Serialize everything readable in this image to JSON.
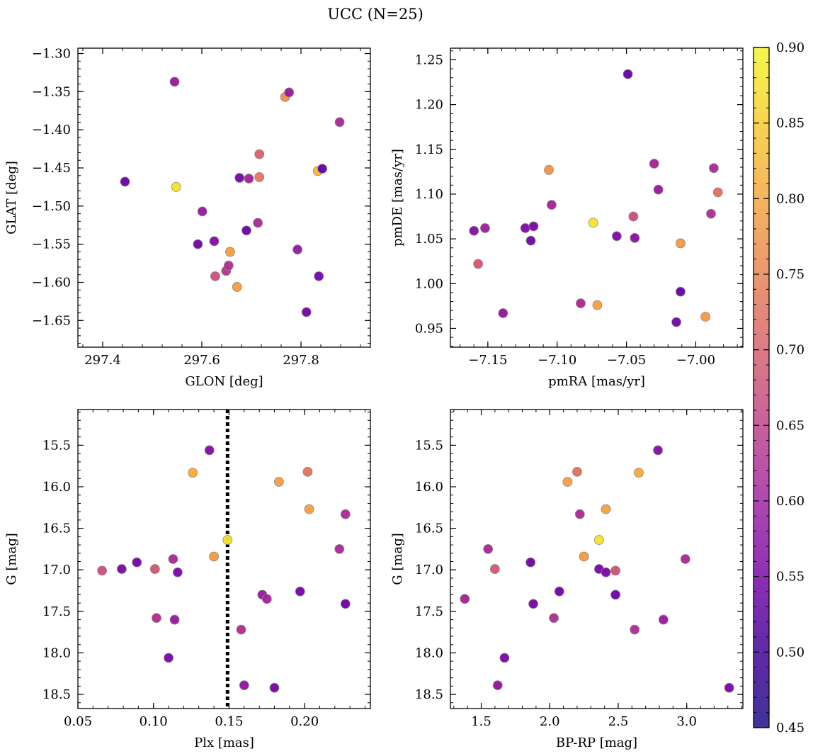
{
  "figure": {
    "title": "UCC (N=25)"
  },
  "colors": {
    "colormap": "plasma",
    "marker_edge": "#8a8a8a",
    "frame": "#000000",
    "reference_line": "#000000"
  },
  "colorbar": {
    "range": [
      0.45,
      0.9
    ],
    "ticks": [
      0.45,
      0.5,
      0.55,
      0.6,
      0.65,
      0.7,
      0.75,
      0.8,
      0.85,
      0.9
    ],
    "tick_labels": [
      "0.45",
      "0.50",
      "0.55",
      "0.60",
      "0.65",
      "0.70",
      "0.75",
      "0.80",
      "0.85",
      "0.90"
    ]
  },
  "chart_data": [
    {
      "type": "scatter",
      "id": "glon-glat",
      "xlabel": "GLON [deg]",
      "ylabel": "GLAT [deg]",
      "xlim": [
        297.35,
        297.94
      ],
      "ylim": [
        -1.685,
        -1.293
      ],
      "y_inverted": false,
      "xticks": [
        297.4,
        297.6,
        297.8
      ],
      "xtick_labels": [
        "297.4",
        "297.6",
        "297.8"
      ],
      "yticks": [
        -1.3,
        -1.35,
        -1.4,
        -1.45,
        -1.5,
        -1.55,
        -1.6,
        -1.65
      ],
      "ytick_labels": [
        "−1.30",
        "−1.35",
        "−1.40",
        "−1.45",
        "−1.50",
        "−1.55",
        "−1.60",
        "−1.65"
      ],
      "points": [
        {
          "x": 297.545,
          "y": -1.337,
          "c": 0.55
        },
        {
          "x": 297.445,
          "y": -1.468,
          "c": 0.47
        },
        {
          "x": 297.548,
          "y": -1.475,
          "c": 0.9
        },
        {
          "x": 297.601,
          "y": -1.507,
          "c": 0.55
        },
        {
          "x": 297.592,
          "y": -1.55,
          "c": 0.49
        },
        {
          "x": 297.625,
          "y": -1.546,
          "c": 0.52
        },
        {
          "x": 297.627,
          "y": -1.592,
          "c": 0.66
        },
        {
          "x": 297.649,
          "y": -1.585,
          "c": 0.6
        },
        {
          "x": 297.654,
          "y": -1.578,
          "c": 0.59
        },
        {
          "x": 297.657,
          "y": -1.56,
          "c": 0.8
        },
        {
          "x": 297.671,
          "y": -1.606,
          "c": 0.8
        },
        {
          "x": 297.676,
          "y": -1.463,
          "c": 0.5
        },
        {
          "x": 297.69,
          "y": -1.532,
          "c": 0.48
        },
        {
          "x": 297.695,
          "y": -1.464,
          "c": 0.57
        },
        {
          "x": 297.713,
          "y": -1.522,
          "c": 0.58
        },
        {
          "x": 297.716,
          "y": -1.432,
          "c": 0.69
        },
        {
          "x": 297.716,
          "y": -1.462,
          "c": 0.73
        },
        {
          "x": 297.768,
          "y": -1.357,
          "c": 0.77
        },
        {
          "x": 297.776,
          "y": -1.351,
          "c": 0.55
        },
        {
          "x": 297.793,
          "y": -1.557,
          "c": 0.55
        },
        {
          "x": 297.811,
          "y": -1.639,
          "c": 0.49
        },
        {
          "x": 297.834,
          "y": -1.454,
          "c": 0.84
        },
        {
          "x": 297.836,
          "y": -1.592,
          "c": 0.49
        },
        {
          "x": 297.843,
          "y": -1.451,
          "c": 0.47
        },
        {
          "x": 297.878,
          "y": -1.39,
          "c": 0.58
        }
      ]
    },
    {
      "type": "scatter",
      "id": "pmra-pmde",
      "xlabel": "pmRA [mas/yr]",
      "ylabel": "pmDE [mas/yr]",
      "xlim": [
        -7.177,
        -6.966
      ],
      "ylim": [
        0.929,
        1.263
      ],
      "y_inverted": false,
      "xticks": [
        -7.15,
        -7.1,
        -7.05,
        -7.0
      ],
      "xtick_labels": [
        "−7.15",
        "−7.10",
        "−7.05",
        "−7.00"
      ],
      "yticks": [
        0.95,
        1.0,
        1.05,
        1.1,
        1.15,
        1.2,
        1.25
      ],
      "ytick_labels": [
        "0.95",
        "1.00",
        "1.05",
        "1.10",
        "1.15",
        "1.20",
        "1.25"
      ],
      "points": [
        {
          "x": -7.049,
          "y": 1.234,
          "c": 0.47
        },
        {
          "x": -7.03,
          "y": 1.134,
          "c": 0.57
        },
        {
          "x": -6.987,
          "y": 1.129,
          "c": 0.58
        },
        {
          "x": -7.106,
          "y": 1.127,
          "c": 0.78
        },
        {
          "x": -7.027,
          "y": 1.105,
          "c": 0.55
        },
        {
          "x": -6.984,
          "y": 1.102,
          "c": 0.72
        },
        {
          "x": -7.104,
          "y": 1.088,
          "c": 0.57
        },
        {
          "x": -6.989,
          "y": 1.078,
          "c": 0.59
        },
        {
          "x": -7.045,
          "y": 1.075,
          "c": 0.65
        },
        {
          "x": -7.074,
          "y": 1.068,
          "c": 0.9
        },
        {
          "x": -7.16,
          "y": 1.059,
          "c": 0.52
        },
        {
          "x": -7.152,
          "y": 1.062,
          "c": 0.56
        },
        {
          "x": -7.123,
          "y": 1.062,
          "c": 0.51
        },
        {
          "x": -7.117,
          "y": 1.064,
          "c": 0.5
        },
        {
          "x": -7.057,
          "y": 1.053,
          "c": 0.51
        },
        {
          "x": -7.044,
          "y": 1.051,
          "c": 0.53
        },
        {
          "x": -7.119,
          "y": 1.048,
          "c": 0.49
        },
        {
          "x": -7.011,
          "y": 1.045,
          "c": 0.79
        },
        {
          "x": -7.157,
          "y": 1.022,
          "c": 0.67
        },
        {
          "x": -7.011,
          "y": 0.991,
          "c": 0.47
        },
        {
          "x": -7.083,
          "y": 0.978,
          "c": 0.58
        },
        {
          "x": -7.071,
          "y": 0.976,
          "c": 0.8
        },
        {
          "x": -7.139,
          "y": 0.967,
          "c": 0.54
        },
        {
          "x": -6.993,
          "y": 0.963,
          "c": 0.79
        },
        {
          "x": -7.014,
          "y": 0.957,
          "c": 0.49
        }
      ]
    },
    {
      "type": "scatter",
      "id": "plx-g",
      "xlabel": "Plx [mas]",
      "ylabel": "G [mag]",
      "xlim": [
        0.05,
        0.2435
      ],
      "ylim": [
        18.67,
        15.07
      ],
      "y_inverted": true,
      "xticks": [
        0.05,
        0.1,
        0.15,
        0.2
      ],
      "xtick_labels": [
        "0.05",
        "0.10",
        "0.15",
        "0.20"
      ],
      "yticks": [
        15.5,
        16.0,
        16.5,
        17.0,
        17.5,
        18.0,
        18.5
      ],
      "ytick_labels": [
        "15.5",
        "16.0",
        "16.5",
        "17.0",
        "17.5",
        "18.0",
        "18.5"
      ],
      "vline": {
        "x": 0.149,
        "style": "dotted"
      },
      "points": [
        {
          "x": 0.137,
          "y": 15.56,
          "c": 0.52
        },
        {
          "x": 0.126,
          "y": 15.83,
          "c": 0.82
        },
        {
          "x": 0.202,
          "y": 15.82,
          "c": 0.72
        },
        {
          "x": 0.183,
          "y": 15.94,
          "c": 0.8
        },
        {
          "x": 0.203,
          "y": 16.27,
          "c": 0.8
        },
        {
          "x": 0.227,
          "y": 16.33,
          "c": 0.58
        },
        {
          "x": 0.149,
          "y": 16.64,
          "c": 0.9
        },
        {
          "x": 0.223,
          "y": 16.75,
          "c": 0.58
        },
        {
          "x": 0.14,
          "y": 16.84,
          "c": 0.79
        },
        {
          "x": 0.113,
          "y": 16.87,
          "c": 0.58
        },
        {
          "x": 0.089,
          "y": 16.91,
          "c": 0.49
        },
        {
          "x": 0.079,
          "y": 16.99,
          "c": 0.5
        },
        {
          "x": 0.101,
          "y": 16.99,
          "c": 0.67
        },
        {
          "x": 0.066,
          "y": 17.01,
          "c": 0.66
        },
        {
          "x": 0.116,
          "y": 17.03,
          "c": 0.5
        },
        {
          "x": 0.197,
          "y": 17.26,
          "c": 0.49
        },
        {
          "x": 0.172,
          "y": 17.3,
          "c": 0.55
        },
        {
          "x": 0.175,
          "y": 17.35,
          "c": 0.57
        },
        {
          "x": 0.227,
          "y": 17.41,
          "c": 0.48
        },
        {
          "x": 0.102,
          "y": 17.58,
          "c": 0.59
        },
        {
          "x": 0.114,
          "y": 17.6,
          "c": 0.55
        },
        {
          "x": 0.158,
          "y": 17.72,
          "c": 0.59
        },
        {
          "x": 0.11,
          "y": 18.06,
          "c": 0.5
        },
        {
          "x": 0.16,
          "y": 18.39,
          "c": 0.54
        },
        {
          "x": 0.18,
          "y": 18.42,
          "c": 0.5
        }
      ]
    },
    {
      "type": "scatter",
      "id": "bprp-g",
      "xlabel": "BP-RP [mag]",
      "ylabel": "G [mag]",
      "xlim": [
        1.275,
        3.41
      ],
      "ylim": [
        18.67,
        15.07
      ],
      "y_inverted": true,
      "xticks": [
        1.5,
        2.0,
        2.5,
        3.0
      ],
      "xtick_labels": [
        "1.5",
        "2.0",
        "2.5",
        "3.0"
      ],
      "yticks": [
        15.5,
        16.0,
        16.5,
        17.0,
        17.5,
        18.0,
        18.5
      ],
      "ytick_labels": [
        "15.5",
        "16.0",
        "16.5",
        "17.0",
        "17.5",
        "18.0",
        "18.5"
      ],
      "points": [
        {
          "x": 2.79,
          "y": 15.56,
          "c": 0.52
        },
        {
          "x": 2.2,
          "y": 15.82,
          "c": 0.72
        },
        {
          "x": 2.65,
          "y": 15.83,
          "c": 0.82
        },
        {
          "x": 2.13,
          "y": 15.94,
          "c": 0.8
        },
        {
          "x": 2.41,
          "y": 16.27,
          "c": 0.8
        },
        {
          "x": 2.22,
          "y": 16.33,
          "c": 0.58
        },
        {
          "x": 2.36,
          "y": 16.64,
          "c": 0.9
        },
        {
          "x": 1.55,
          "y": 16.75,
          "c": 0.58
        },
        {
          "x": 2.25,
          "y": 16.84,
          "c": 0.79
        },
        {
          "x": 2.99,
          "y": 16.87,
          "c": 0.58
        },
        {
          "x": 1.86,
          "y": 16.91,
          "c": 0.49
        },
        {
          "x": 2.36,
          "y": 16.99,
          "c": 0.5
        },
        {
          "x": 1.6,
          "y": 16.99,
          "c": 0.67
        },
        {
          "x": 2.48,
          "y": 17.01,
          "c": 0.66
        },
        {
          "x": 2.41,
          "y": 17.03,
          "c": 0.5
        },
        {
          "x": 2.07,
          "y": 17.26,
          "c": 0.49
        },
        {
          "x": 2.48,
          "y": 17.3,
          "c": 0.48
        },
        {
          "x": 1.38,
          "y": 17.35,
          "c": 0.57
        },
        {
          "x": 1.88,
          "y": 17.41,
          "c": 0.49
        },
        {
          "x": 2.03,
          "y": 17.58,
          "c": 0.59
        },
        {
          "x": 2.83,
          "y": 17.6,
          "c": 0.55
        },
        {
          "x": 2.62,
          "y": 17.72,
          "c": 0.59
        },
        {
          "x": 1.67,
          "y": 18.06,
          "c": 0.5
        },
        {
          "x": 1.62,
          "y": 18.39,
          "c": 0.54
        },
        {
          "x": 3.31,
          "y": 18.42,
          "c": 0.5
        }
      ]
    }
  ]
}
